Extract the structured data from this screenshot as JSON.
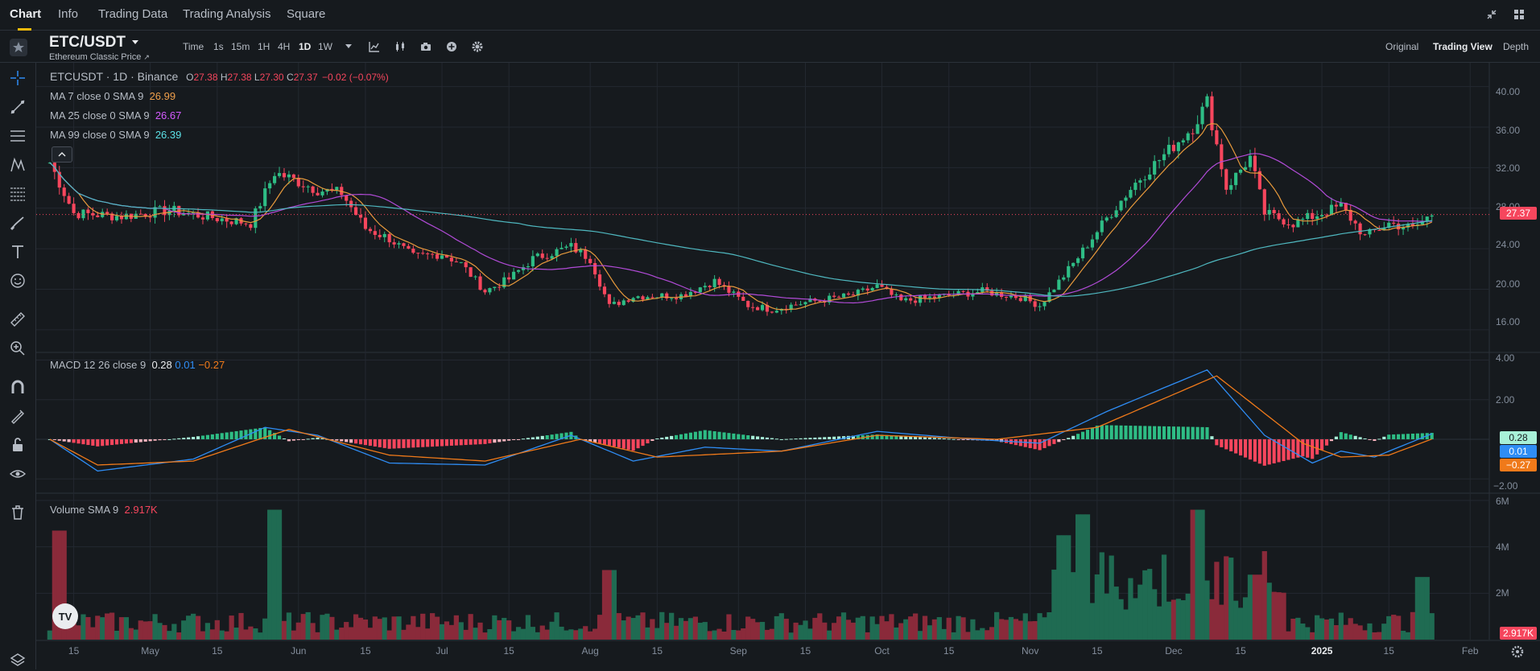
{
  "nav": {
    "tabs": [
      {
        "label": "Chart",
        "active": true
      },
      {
        "label": "Info",
        "active": false
      },
      {
        "label": "Trading Data",
        "active": false
      },
      {
        "label": "Trading Analysis",
        "active": false
      },
      {
        "label": "Square",
        "active": false
      }
    ],
    "icons": [
      "collapse-icon",
      "grid-layout-icon"
    ]
  },
  "symbol": {
    "pair": "ETC/USDT",
    "subtitle": "Ethereum Classic Price",
    "subtitle_suffix": "↗"
  },
  "timeframes": {
    "label": "Time",
    "items": [
      "1s",
      "15m",
      "1H",
      "4H",
      "1D",
      "1W"
    ],
    "active": "1D"
  },
  "views": {
    "items": [
      "Original",
      "Trading View",
      "Depth"
    ],
    "active": "Trading View"
  },
  "legend": {
    "main_symbol": "ETCUSDT · 1D · Binance",
    "o_label": "O",
    "o_val": "27.38",
    "h_label": "H",
    "h_val": "27.38",
    "l_label": "L",
    "l_val": "27.30",
    "c_label": "C",
    "c_val": "27.37",
    "change": "−0.02 (−0.07%)",
    "ma7_label": "MA 7 close 0 SMA 9",
    "ma7_val": "26.99",
    "ma25_label": "MA 25 close 0 SMA 9",
    "ma25_val": "26.67",
    "ma99_label": "MA 99 close 0 SMA 9",
    "ma99_val": "26.39",
    "macd_label": "MACD 12 26 close 9",
    "macd_v1": "0.28",
    "macd_v2": "0.01",
    "macd_v3": "−0.27",
    "vol_label": "Volume SMA 9",
    "vol_val": "2.917K"
  },
  "price_axis": {
    "ticks": [
      "40.00",
      "36.00",
      "32.00",
      "28.00",
      "24.00",
      "20.00",
      "16.00"
    ],
    "last_price": "27.37",
    "macd_ticks": [
      "4.00",
      "2.00",
      "−2.00"
    ],
    "macd_tags": [
      "0.28",
      "0.01",
      "−0.27"
    ],
    "vol_ticks": [
      "6M",
      "4M",
      "2M"
    ],
    "vol_tag": "2.917K"
  },
  "time_axis": [
    "15",
    "May",
    "15",
    "Jun",
    "15",
    "Jul",
    "15",
    "Aug",
    "15",
    "Sep",
    "15",
    "Oct",
    "15",
    "Nov",
    "15",
    "Dec",
    "15",
    "2025",
    "15",
    "Feb"
  ],
  "colors": {
    "up": "#2EBD85",
    "down": "#F6465D",
    "ma7": "#E89A3C",
    "ma25": "#B24BD8",
    "ma99": "#4FB8C0",
    "macd": "#2F8DF5",
    "signal": "#F07A1A",
    "accent": "#F0B90B",
    "ma7_text": "#F0A04B",
    "ma25_text": "#D45BFF",
    "ma99_text": "#5CE0E6"
  },
  "chart_data": [
    {
      "type": "candlestick",
      "title": "ETCUSDT · 1D · Binance",
      "ylim": [
        14,
        41
      ],
      "y_ticks": [
        16,
        20,
        24,
        28,
        32,
        36,
        40
      ],
      "x_ticks": [
        "15",
        "May",
        "15",
        "Jun",
        "15",
        "Jul",
        "15",
        "Aug",
        "15",
        "Sep",
        "15",
        "Oct",
        "15",
        "Nov",
        "15",
        "Dec",
        "15",
        "2025",
        "15",
        "Feb"
      ],
      "series": [
        {
          "name": "ETCUSDT",
          "close_path": [
            [
              "2024-04-10",
              32.5
            ],
            [
              "2024-04-15",
              27.5
            ],
            [
              "2024-04-25",
              27.2
            ],
            [
              "2024-05-05",
              27.8
            ],
            [
              "2024-05-15",
              27.0
            ],
            [
              "2024-05-22",
              26.5
            ],
            [
              "2024-05-27",
              31.5
            ],
            [
              "2024-05-30",
              31.0
            ],
            [
              "2024-06-05",
              29.8
            ],
            [
              "2024-06-10",
              29.5
            ],
            [
              "2024-06-15",
              26.0
            ],
            [
              "2024-06-20",
              25.0
            ],
            [
              "2024-06-25",
              23.2
            ],
            [
              "2024-07-01",
              23.5
            ],
            [
              "2024-07-05",
              22.5
            ],
            [
              "2024-07-10",
              19.8
            ],
            [
              "2024-07-15",
              21.0
            ],
            [
              "2024-07-20",
              23.0
            ],
            [
              "2024-07-28",
              24.2
            ],
            [
              "2024-08-01",
              23.0
            ],
            [
              "2024-08-05",
              18.3
            ],
            [
              "2024-08-10",
              19.3
            ],
            [
              "2024-08-20",
              19.4
            ],
            [
              "2024-08-27",
              20.8
            ],
            [
              "2024-09-03",
              18.4
            ],
            [
              "2024-09-08",
              18.0
            ],
            [
              "2024-09-15",
              18.7
            ],
            [
              "2024-09-25",
              19.4
            ],
            [
              "2024-09-30",
              20.3
            ],
            [
              "2024-10-05",
              18.8
            ],
            [
              "2024-10-15",
              19.4
            ],
            [
              "2024-10-22",
              19.8
            ],
            [
              "2024-10-30",
              19.2
            ],
            [
              "2024-11-03",
              18.4
            ],
            [
              "2024-11-10",
              22.5
            ],
            [
              "2024-11-17",
              27.0
            ],
            [
              "2024-11-23",
              30.5
            ],
            [
              "2024-12-05",
              36.0
            ],
            [
              "2024-12-08",
              38.5
            ],
            [
              "2024-12-12",
              30.0
            ],
            [
              "2024-12-17",
              33.0
            ],
            [
              "2024-12-20",
              27.5
            ],
            [
              "2024-12-26",
              26.5
            ],
            [
              "2025-01-05",
              28.2
            ],
            [
              "2025-01-10",
              25.2
            ],
            [
              "2025-01-15",
              26.5
            ],
            [
              "2025-01-20",
              26.0
            ],
            [
              "2025-01-24",
              27.4
            ]
          ]
        },
        {
          "name": "MA 7",
          "last": 26.99
        },
        {
          "name": "MA 25",
          "last": 26.67
        },
        {
          "name": "MA 99",
          "last": 26.39
        }
      ]
    },
    {
      "type": "line",
      "title": "MACD 12 26 close 9",
      "ylim": [
        -2.6,
        4.1
      ],
      "y_ticks": [
        4,
        2,
        -2
      ],
      "series": [
        {
          "name": "MACD",
          "values": [
            [
              "2024-04-10",
              0.0
            ],
            [
              "2024-04-20",
              -1.6
            ],
            [
              "2024-05-10",
              -1.0
            ],
            [
              "2024-05-25",
              0.6
            ],
            [
              "2024-06-05",
              0.2
            ],
            [
              "2024-06-20",
              -1.2
            ],
            [
              "2024-07-10",
              -1.3
            ],
            [
              "2024-07-28",
              0.2
            ],
            [
              "2024-08-10",
              -1.1
            ],
            [
              "2024-08-25",
              -0.4
            ],
            [
              "2024-09-10",
              -0.6
            ],
            [
              "2024-09-30",
              0.4
            ],
            [
              "2024-10-20",
              0.0
            ],
            [
              "2024-11-03",
              -0.2
            ],
            [
              "2024-11-17",
              1.4
            ],
            [
              "2024-12-08",
              3.5
            ],
            [
              "2024-12-20",
              0.2
            ],
            [
              "2024-12-30",
              -1.2
            ],
            [
              "2025-01-05",
              -0.6
            ],
            [
              "2025-01-12",
              -0.9
            ],
            [
              "2025-01-24",
              0.28
            ]
          ]
        },
        {
          "name": "Signal",
          "values": [
            [
              "2024-04-10",
              0.0
            ],
            [
              "2024-04-20",
              -1.3
            ],
            [
              "2024-05-10",
              -1.1
            ],
            [
              "2024-05-30",
              0.5
            ],
            [
              "2024-06-20",
              -0.8
            ],
            [
              "2024-07-10",
              -1.1
            ],
            [
              "2024-07-30",
              0.0
            ],
            [
              "2024-08-15",
              -0.9
            ],
            [
              "2024-09-10",
              -0.6
            ],
            [
              "2024-09-30",
              0.2
            ],
            [
              "2024-10-25",
              0.0
            ],
            [
              "2024-11-15",
              0.6
            ],
            [
              "2024-12-10",
              3.2
            ],
            [
              "2024-12-28",
              -0.2
            ],
            [
              "2025-01-05",
              -0.9
            ],
            [
              "2025-01-15",
              -0.8
            ],
            [
              "2025-01-24",
              0.01
            ]
          ]
        },
        {
          "name": "Histogram",
          "last": -0.27
        }
      ]
    },
    {
      "type": "area",
      "title": "Volume SMA 9",
      "ylim": [
        0,
        6000000
      ],
      "y_ticks": [
        "6M",
        "4M",
        "2M"
      ],
      "series": [
        {
          "name": "Volume SMA 9",
          "last": "2.917K",
          "peaks": [
            [
              "2024-04-12",
              4.7
            ],
            [
              "2024-05-27",
              5.6
            ],
            [
              "2024-08-05",
              3.0
            ],
            [
              "2024-11-08",
              4.5
            ],
            [
              "2024-11-12",
              5.4
            ],
            [
              "2024-12-06",
              5.6
            ],
            [
              "2024-12-18",
              2.8
            ],
            [
              "2025-01-22",
              2.7
            ]
          ]
        }
      ]
    }
  ]
}
